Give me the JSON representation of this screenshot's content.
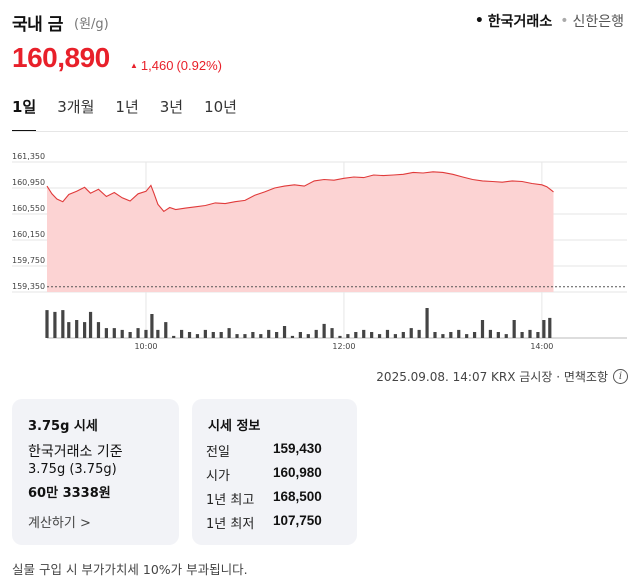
{
  "header": {
    "title": "국내 금",
    "unit": "(원/g)",
    "sources": [
      {
        "label": "한국거래소",
        "active": true
      },
      {
        "label": "신한은행",
        "active": false
      }
    ]
  },
  "price": {
    "current": "160,890",
    "change": "1,460",
    "change_pct": "(0.92%)",
    "direction_symbol": "▲"
  },
  "tabs": [
    {
      "label": "1일",
      "active": true
    },
    {
      "label": "3개월",
      "active": false
    },
    {
      "label": "1년",
      "active": false
    },
    {
      "label": "3년",
      "active": false
    },
    {
      "label": "10년",
      "active": false
    }
  ],
  "chart_data": {
    "type": "area",
    "y_tick_labels": [
      "161,350",
      "160,950",
      "160,550",
      "160,150",
      "159,750",
      "159,350"
    ],
    "y_ticks": [
      161350,
      160950,
      160550,
      160150,
      159750,
      159350
    ],
    "ylim": [
      159350,
      161350
    ],
    "x_tick_labels": [
      "10:00",
      "12:00",
      "14:00"
    ],
    "x_ticks_hours": [
      10,
      12,
      14
    ],
    "xlim_hours": [
      9.0,
      14.86
    ],
    "data_end_hour": 14.117,
    "reference_line": 159430,
    "reference_label": "전일",
    "price_series": [
      [
        9.0,
        160980
      ],
      [
        9.05,
        160860
      ],
      [
        9.1,
        160780
      ],
      [
        9.16,
        160740
      ],
      [
        9.22,
        160850
      ],
      [
        9.3,
        160900
      ],
      [
        9.38,
        160960
      ],
      [
        9.44,
        160870
      ],
      [
        9.52,
        160930
      ],
      [
        9.6,
        160820
      ],
      [
        9.68,
        160880
      ],
      [
        9.76,
        160800
      ],
      [
        9.84,
        160750
      ],
      [
        9.92,
        160860
      ],
      [
        10.0,
        160900
      ],
      [
        10.05,
        160990
      ],
      [
        10.08,
        160870
      ],
      [
        10.12,
        160700
      ],
      [
        10.18,
        160590
      ],
      [
        10.24,
        160650
      ],
      [
        10.3,
        160620
      ],
      [
        10.4,
        160640
      ],
      [
        10.5,
        160660
      ],
      [
        10.6,
        160680
      ],
      [
        10.7,
        160720
      ],
      [
        10.8,
        160710
      ],
      [
        10.9,
        160740
      ],
      [
        11.0,
        160760
      ],
      [
        11.1,
        160840
      ],
      [
        11.2,
        160890
      ],
      [
        11.3,
        160950
      ],
      [
        11.4,
        160980
      ],
      [
        11.5,
        161000
      ],
      [
        11.6,
        160980
      ],
      [
        11.7,
        161060
      ],
      [
        11.8,
        161080
      ],
      [
        11.9,
        161070
      ],
      [
        12.0,
        161100
      ],
      [
        12.1,
        161120
      ],
      [
        12.2,
        161110
      ],
      [
        12.3,
        161150
      ],
      [
        12.4,
        161140
      ],
      [
        12.5,
        161150
      ],
      [
        12.6,
        161160
      ],
      [
        12.7,
        161190
      ],
      [
        12.8,
        161180
      ],
      [
        12.9,
        161200
      ],
      [
        13.0,
        161190
      ],
      [
        13.1,
        161160
      ],
      [
        13.2,
        161120
      ],
      [
        13.3,
        161080
      ],
      [
        13.4,
        161060
      ],
      [
        13.5,
        161050
      ],
      [
        13.6,
        161040
      ],
      [
        13.7,
        161060
      ],
      [
        13.8,
        161050
      ],
      [
        13.9,
        161020
      ],
      [
        14.0,
        161000
      ],
      [
        14.05,
        160970
      ],
      [
        14.1,
        160910
      ],
      [
        14.117,
        160890
      ]
    ],
    "volume_series": [
      [
        9.0,
        0.93
      ],
      [
        9.08,
        0.87
      ],
      [
        9.16,
        0.93
      ],
      [
        9.22,
        0.53
      ],
      [
        9.3,
        0.6
      ],
      [
        9.38,
        0.53
      ],
      [
        9.44,
        0.87
      ],
      [
        9.52,
        0.53
      ],
      [
        9.6,
        0.33
      ],
      [
        9.68,
        0.33
      ],
      [
        9.76,
        0.27
      ],
      [
        9.84,
        0.2
      ],
      [
        9.92,
        0.33
      ],
      [
        10.0,
        0.27
      ],
      [
        10.06,
        0.8
      ],
      [
        10.12,
        0.27
      ],
      [
        10.2,
        0.53
      ],
      [
        10.28,
        0.07
      ],
      [
        10.36,
        0.27
      ],
      [
        10.44,
        0.2
      ],
      [
        10.52,
        0.13
      ],
      [
        10.6,
        0.27
      ],
      [
        10.68,
        0.2
      ],
      [
        10.76,
        0.2
      ],
      [
        10.84,
        0.33
      ],
      [
        10.92,
        0.13
      ],
      [
        11.0,
        0.13
      ],
      [
        11.08,
        0.2
      ],
      [
        11.16,
        0.13
      ],
      [
        11.24,
        0.27
      ],
      [
        11.32,
        0.2
      ],
      [
        11.4,
        0.4
      ],
      [
        11.48,
        0.07
      ],
      [
        11.56,
        0.2
      ],
      [
        11.64,
        0.13
      ],
      [
        11.72,
        0.27
      ],
      [
        11.8,
        0.47
      ],
      [
        11.88,
        0.33
      ],
      [
        11.96,
        0.07
      ],
      [
        12.04,
        0.13
      ],
      [
        12.12,
        0.2
      ],
      [
        12.2,
        0.27
      ],
      [
        12.28,
        0.2
      ],
      [
        12.36,
        0.13
      ],
      [
        12.44,
        0.27
      ],
      [
        12.52,
        0.13
      ],
      [
        12.6,
        0.2
      ],
      [
        12.68,
        0.33
      ],
      [
        12.76,
        0.27
      ],
      [
        12.84,
        1.0
      ],
      [
        12.92,
        0.2
      ],
      [
        13.0,
        0.13
      ],
      [
        13.08,
        0.2
      ],
      [
        13.16,
        0.27
      ],
      [
        13.24,
        0.13
      ],
      [
        13.32,
        0.2
      ],
      [
        13.4,
        0.6
      ],
      [
        13.48,
        0.27
      ],
      [
        13.56,
        0.2
      ],
      [
        13.64,
        0.13
      ],
      [
        13.72,
        0.6
      ],
      [
        13.8,
        0.2
      ],
      [
        13.88,
        0.27
      ],
      [
        13.96,
        0.2
      ],
      [
        14.02,
        0.6
      ],
      [
        14.08,
        0.67
      ]
    ]
  },
  "timestamp": {
    "text": "2025.09.08. 14:07 KRX 금시장 · 면책조항",
    "info_icon": "info-icon"
  },
  "card_left": {
    "title": "3.75g 시세",
    "basis": "한국거래소 기준",
    "weight": "3.75g (3.75g)",
    "price": "60만 3338원",
    "calc_link": "계산하기 >"
  },
  "card_right": {
    "title": "시세 정보",
    "rows": [
      {
        "label": "전일",
        "value": "159,430"
      },
      {
        "label": "시가",
        "value": "160,980"
      },
      {
        "label": "1년 최고",
        "value": "168,500"
      },
      {
        "label": "1년 최저",
        "value": "107,750"
      }
    ]
  },
  "footnote": "실물 구입 시 부가가치세 10%가 부과됩니다.",
  "colors": {
    "up": "#e8202a",
    "area_fill": "#fcd3d3",
    "line": "#e03a3a",
    "volume": "#444444",
    "card_bg": "#f2f3f7"
  }
}
